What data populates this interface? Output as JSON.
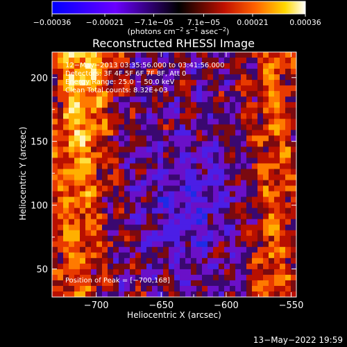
{
  "chart_data": {
    "type": "heatmap",
    "title": "Reconstructed RHESSI Image",
    "xlabel": "Heliocentric X (arcsec)",
    "ylabel": "Heliocentric Y (arcsec)",
    "xlim": [
      -734,
      -546
    ],
    "ylim": [
      28,
      220
    ],
    "x_ticks": [
      -700,
      -650,
      -600,
      -550
    ],
    "x_tick_labels": [
      "−700",
      "−650",
      "−600",
      "−550"
    ],
    "y_ticks": [
      50,
      100,
      150,
      200
    ],
    "y_tick_labels": [
      "50",
      "100",
      "150",
      "200"
    ],
    "colorbar": {
      "range": [
        -0.00036,
        0.00036
      ],
      "ticks": [
        -0.00036,
        -0.00021,
        -7.1e-05,
        7.1e-05,
        0.00021,
        0.00036
      ],
      "tick_labels": [
        "−0.00036",
        "−0.00021",
        "−7.1e−05",
        "7.1e−05",
        "0.00021",
        "0.00036"
      ],
      "units_text": "(photons cm",
      "units_exp1": "−2",
      "units_mid": " s",
      "units_exp2": "−1",
      "units_mid2": " asec",
      "units_exp3": "−2",
      "units_close": ")"
    },
    "annotations": [
      "12−May−2013 03:35:56.000 to 03:41:56.000",
      "Detectors: 3F 4F 5F 6F 7F 8F, Att 0",
      "Energy Range: 25.0 − 50.0 keV",
      "Clean     Total counts: 8.32E+03"
    ],
    "peak_label": "Position of Peak = [−700,168]",
    "peak_position": [
      -700,
      168
    ],
    "grid": false
  },
  "footer": {
    "timestamp": "13−May−2022 19:59"
  }
}
